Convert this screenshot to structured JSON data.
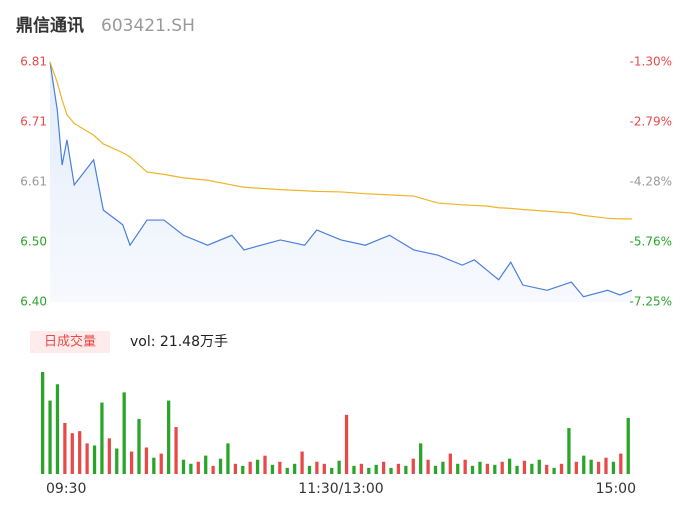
{
  "header": {
    "name": "鼎信通讯",
    "code": "603421.SH"
  },
  "chart_data": [
    {
      "type": "line",
      "x": [
        0,
        3,
        5,
        7,
        10,
        18,
        22,
        30,
        33,
        40,
        47,
        55,
        65,
        75,
        80,
        95,
        105,
        110,
        120,
        130,
        140,
        150,
        160,
        170,
        175,
        180,
        185,
        190,
        195,
        205,
        215,
        220,
        230,
        235,
        240
      ],
      "series": [
        {
          "color": "#4a7fdc",
          "values": [
            6.81,
            6.728,
            6.634,
            6.677,
            6.6,
            6.643,
            6.557,
            6.532,
            6.497,
            6.54,
            6.54,
            6.514,
            6.497,
            6.514,
            6.489,
            6.506,
            6.497,
            6.523,
            6.506,
            6.497,
            6.514,
            6.489,
            6.48,
            6.463,
            6.472,
            6.455,
            6.438,
            6.468,
            6.429,
            6.42,
            6.434,
            6.409,
            6.42,
            6.412,
            6.42
          ]
        },
        {
          "color": "#f0b429",
          "values": [
            6.81,
            6.775,
            6.745,
            6.72,
            6.705,
            6.685,
            6.67,
            6.655,
            6.648,
            6.622,
            6.618,
            6.612,
            6.608,
            6.6,
            6.596,
            6.592,
            6.59,
            6.589,
            6.588,
            6.585,
            6.583,
            6.581,
            6.569,
            6.566,
            6.565,
            6.564,
            6.561,
            6.56,
            6.558,
            6.555,
            6.552,
            6.548,
            6.543,
            6.542,
            6.542
          ]
        }
      ],
      "xlim": [
        0,
        240
      ],
      "xticks": [
        {
          "value": 0,
          "label": "09:30"
        },
        {
          "value": 120,
          "label": "11:30/13:00"
        },
        {
          "value": 240,
          "label": "15:00"
        }
      ],
      "ylim": [
        6.4,
        6.81
      ],
      "yticks": [
        {
          "value": 6.81,
          "label": "6.81"
        },
        {
          "value": 6.7075,
          "label": "6.71"
        },
        {
          "value": 6.605,
          "label": "6.61"
        },
        {
          "value": 6.5025,
          "label": "6.50"
        },
        {
          "value": 6.4,
          "label": "6.40"
        }
      ],
      "ytick_colors": [
        "#e84a4a",
        "#e84a4a",
        "#999999",
        "#2aa52a",
        "#2aa52a"
      ],
      "y2lim": [
        -7.25,
        -1.3
      ],
      "y2ticks": [
        {
          "value": -1.3,
          "label": "-1.30%"
        },
        {
          "value": -2.7875,
          "label": "-2.79%"
        },
        {
          "value": -4.275,
          "label": "-4.28%"
        },
        {
          "value": -5.7625,
          "label": "-5.76%"
        },
        {
          "value": -7.25,
          "label": "-7.25%"
        }
      ],
      "y2tick_colors": [
        "#e84a4a",
        "#e84a4a",
        "#999999",
        "#2aa52a",
        "#2aa52a"
      ]
    },
    {
      "type": "bar",
      "label": "日成交量",
      "summary": "vol: 21.48万手",
      "ylim": [
        0,
        100
      ],
      "values": [
        100,
        72,
        88,
        50,
        40,
        42,
        30,
        28,
        70,
        35,
        25,
        80,
        22,
        54,
        26,
        16,
        20,
        72,
        46,
        14,
        10,
        12,
        18,
        8,
        15,
        30,
        10,
        8,
        12,
        14,
        18,
        9,
        12,
        6,
        10,
        22,
        8,
        12,
        10,
        6,
        13,
        58,
        8,
        10,
        6,
        9,
        12,
        6,
        10,
        8,
        15,
        30,
        14,
        8,
        12,
        20,
        10,
        14,
        8,
        12,
        10,
        9,
        12,
        15,
        8,
        13,
        10,
        14,
        9,
        6,
        10,
        45,
        12,
        18,
        14,
        12,
        16,
        12,
        20,
        55
      ],
      "colors": [
        "#2aa52a",
        "#2aa52a",
        "#2aa52a",
        "#e84a4a",
        "#e84a4a",
        "#e84a4a",
        "#e84a4a",
        "#2aa52a",
        "#2aa52a",
        "#e84a4a",
        "#2aa52a",
        "#2aa52a",
        "#e84a4a",
        "#2aa52a",
        "#e84a4a",
        "#2aa52a",
        "#e84a4a",
        "#2aa52a",
        "#e84a4a",
        "#2aa52a",
        "#2aa52a",
        "#e84a4a",
        "#2aa52a",
        "#e84a4a",
        "#2aa52a",
        "#2aa52a",
        "#e84a4a",
        "#2aa52a",
        "#e84a4a",
        "#2aa52a",
        "#e84a4a",
        "#2aa52a",
        "#e84a4a",
        "#2aa52a",
        "#2aa52a",
        "#e84a4a",
        "#2aa52a",
        "#e84a4a",
        "#e84a4a",
        "#2aa52a",
        "#2aa52a",
        "#e84a4a",
        "#2aa52a",
        "#e84a4a",
        "#2aa52a",
        "#2aa52a",
        "#e84a4a",
        "#2aa52a",
        "#e84a4a",
        "#2aa52a",
        "#e84a4a",
        "#2aa52a",
        "#e84a4a",
        "#2aa52a",
        "#2aa52a",
        "#e84a4a",
        "#2aa52a",
        "#e84a4a",
        "#2aa52a",
        "#2aa52a",
        "#e84a4a",
        "#2aa52a",
        "#e84a4a",
        "#2aa52a",
        "#2aa52a",
        "#e84a4a",
        "#2aa52a",
        "#2aa52a",
        "#e84a4a",
        "#2aa52a",
        "#e84a4a",
        "#2aa52a",
        "#e84a4a",
        "#2aa52a",
        "#2aa52a",
        "#e84a4a",
        "#e84a4a",
        "#2aa52a",
        "#e84a4a",
        "#2aa52a"
      ]
    }
  ]
}
